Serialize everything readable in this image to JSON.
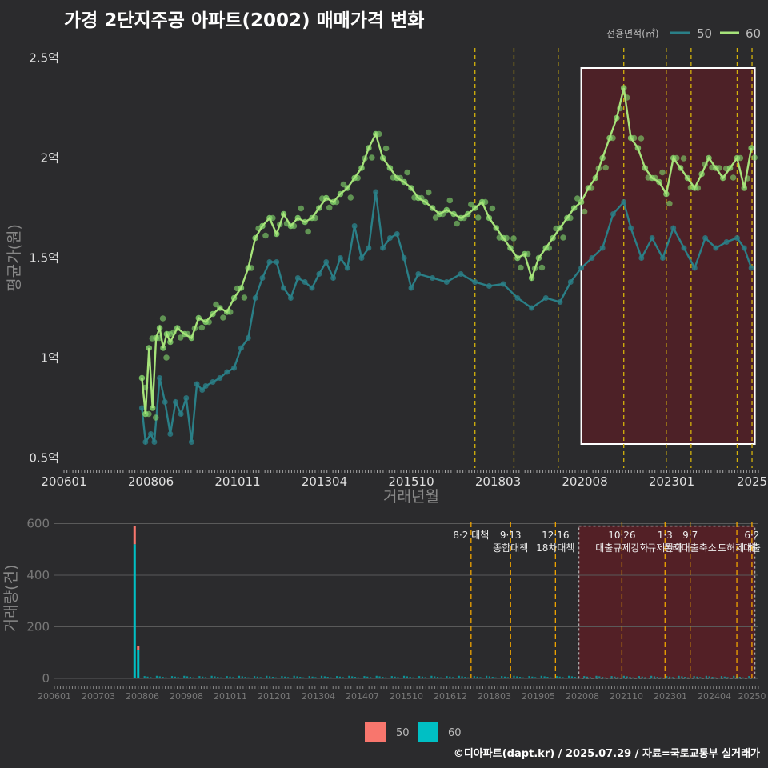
{
  "title": "가경 2단지주공 아파트(2002) 매매가격 변화",
  "source": "©디아파트(dapt.kr) / 2025.07.29 / 자료=국토교통부 실거래가",
  "colors": {
    "bg": "#2b2b2d",
    "s50_line": "#2a7f87",
    "s60_line": "#a6e37a",
    "s60_point": "#84d96c",
    "vol50": "#f8766d",
    "vol60": "#00bfc4",
    "policy": "#d4b20b",
    "highlight": "#5a1f26"
  },
  "chart_data": [
    {
      "type": "line",
      "ylabel": "평균가(원)",
      "xlabel": "거래년월",
      "x_ticks": [
        "200601",
        "200806",
        "201011",
        "201304",
        "201510",
        "201803",
        "202008",
        "202301",
        "2025"
      ],
      "y_ticks": [
        "0.5억",
        "1억",
        "1.5억",
        "2억",
        "2.5억"
      ],
      "y_tick_values": [
        0.5,
        1,
        1.5,
        2,
        2.5
      ],
      "ylim": [
        0.45,
        2.55
      ],
      "xlim": [
        2006.0,
        2025.6
      ],
      "legend_title": "전용면적(㎡)",
      "legend": [
        "50",
        "60"
      ],
      "legend_position": "top-right",
      "highlight_period": [
        2020.6,
        2025.5
      ],
      "policy_lines": [
        2017.6,
        2018.7,
        2019.95,
        2021.8,
        2023.0,
        2023.7,
        2025.0,
        2025.42
      ],
      "series": [
        {
          "name": "50",
          "x": [
            2008.2,
            2008.3,
            2008.45,
            2008.55,
            2008.7,
            2008.85,
            2009.0,
            2009.15,
            2009.3,
            2009.45,
            2009.6,
            2009.75,
            2009.9,
            2010.0,
            2010.2,
            2010.4,
            2010.6,
            2010.8,
            2011.0,
            2011.2,
            2011.4,
            2011.6,
            2011.8,
            2012.0,
            2012.2,
            2012.4,
            2012.6,
            2012.8,
            2013.0,
            2013.2,
            2013.4,
            2013.6,
            2013.8,
            2014.0,
            2014.2,
            2014.4,
            2014.6,
            2014.8,
            2015.0,
            2015.2,
            2015.4,
            2015.6,
            2015.8,
            2016.0,
            2016.4,
            2016.8,
            2017.2,
            2017.6,
            2018.0,
            2018.4,
            2018.8,
            2019.2,
            2019.6,
            2020.0,
            2020.3,
            2020.6,
            2020.9,
            2021.2,
            2021.5,
            2021.8,
            2022.0,
            2022.3,
            2022.6,
            2022.9,
            2023.2,
            2023.5,
            2023.8,
            2024.1,
            2024.4,
            2024.7,
            2025.0,
            2025.2,
            2025.4
          ],
          "y": [
            0.75,
            0.58,
            0.62,
            0.58,
            0.9,
            0.78,
            0.62,
            0.78,
            0.72,
            0.8,
            0.58,
            0.87,
            0.84,
            0.86,
            0.88,
            0.9,
            0.93,
            0.95,
            1.05,
            1.1,
            1.3,
            1.4,
            1.48,
            1.48,
            1.35,
            1.3,
            1.4,
            1.38,
            1.35,
            1.42,
            1.48,
            1.4,
            1.5,
            1.45,
            1.66,
            1.5,
            1.55,
            1.83,
            1.55,
            1.6,
            1.62,
            1.5,
            1.35,
            1.42,
            1.4,
            1.38,
            1.42,
            1.38,
            1.36,
            1.37,
            1.3,
            1.25,
            1.3,
            1.28,
            1.38,
            1.45,
            1.5,
            1.55,
            1.72,
            1.78,
            1.65,
            1.5,
            1.6,
            1.5,
            1.65,
            1.55,
            1.45,
            1.6,
            1.55,
            1.58,
            1.6,
            1.55,
            1.45
          ]
        },
        {
          "name": "60",
          "x": [
            2008.2,
            2008.3,
            2008.4,
            2008.5,
            2008.6,
            2008.7,
            2008.8,
            2008.9,
            2009.0,
            2009.2,
            2009.4,
            2009.6,
            2009.8,
            2010.0,
            2010.2,
            2010.4,
            2010.6,
            2010.8,
            2011.0,
            2011.2,
            2011.4,
            2011.6,
            2011.8,
            2012.0,
            2012.2,
            2012.4,
            2012.6,
            2012.8,
            2013.0,
            2013.2,
            2013.4,
            2013.6,
            2013.8,
            2014.0,
            2014.2,
            2014.4,
            2014.6,
            2014.8,
            2015.0,
            2015.2,
            2015.4,
            2015.6,
            2015.8,
            2016.0,
            2016.2,
            2016.4,
            2016.6,
            2016.8,
            2017.0,
            2017.2,
            2017.4,
            2017.6,
            2017.8,
            2018.0,
            2018.2,
            2018.4,
            2018.6,
            2018.8,
            2019.0,
            2019.2,
            2019.4,
            2019.6,
            2019.8,
            2020.0,
            2020.2,
            2020.4,
            2020.6,
            2020.8,
            2021.0,
            2021.2,
            2021.4,
            2021.6,
            2021.8,
            2022.0,
            2022.2,
            2022.4,
            2022.6,
            2022.8,
            2023.0,
            2023.2,
            2023.4,
            2023.6,
            2023.8,
            2024.0,
            2024.2,
            2024.4,
            2024.6,
            2024.8,
            2025.0,
            2025.2,
            2025.4
          ],
          "y": [
            0.9,
            0.72,
            1.05,
            0.75,
            1.1,
            1.15,
            1.05,
            1.12,
            1.08,
            1.15,
            1.12,
            1.1,
            1.2,
            1.18,
            1.22,
            1.25,
            1.23,
            1.3,
            1.35,
            1.45,
            1.6,
            1.66,
            1.7,
            1.62,
            1.72,
            1.66,
            1.7,
            1.68,
            1.7,
            1.75,
            1.8,
            1.78,
            1.82,
            1.85,
            1.9,
            1.95,
            2.05,
            2.12,
            2.0,
            1.95,
            1.9,
            1.88,
            1.85,
            1.8,
            1.78,
            1.75,
            1.72,
            1.74,
            1.72,
            1.7,
            1.72,
            1.75,
            1.78,
            1.7,
            1.65,
            1.6,
            1.55,
            1.5,
            1.52,
            1.4,
            1.5,
            1.55,
            1.6,
            1.65,
            1.7,
            1.75,
            1.78,
            1.85,
            1.9,
            2.0,
            2.1,
            2.2,
            2.35,
            2.1,
            2.05,
            1.95,
            1.9,
            1.88,
            1.82,
            2.0,
            1.95,
            1.9,
            1.85,
            1.92,
            2.0,
            1.95,
            1.9,
            1.95,
            2.0,
            1.85,
            2.05
          ]
        }
      ]
    },
    {
      "type": "bar",
      "ylabel": "거래량(건)",
      "x_ticks": [
        "200601",
        "200703",
        "200806",
        "200908",
        "201011",
        "201201",
        "201304",
        "201407",
        "201510",
        "201612",
        "201803",
        "201905",
        "202008",
        "202110",
        "202301",
        "202404",
        "20250"
      ],
      "y_ticks": [
        "0",
        "200",
        "400",
        "600"
      ],
      "y_tick_values": [
        0,
        200,
        400,
        600
      ],
      "ylim": [
        0,
        620
      ],
      "legend": [
        "50",
        "60"
      ],
      "legend_position": "bottom",
      "annotations": [
        {
          "x": 2017.6,
          "lines": [
            "8·2 대책"
          ]
        },
        {
          "x": 2018.7,
          "lines": [
            "9·13",
            "종합대책"
          ]
        },
        {
          "x": 2019.95,
          "lines": [
            "12·16",
            "18차대책"
          ]
        },
        {
          "x": 2021.8,
          "lines": [
            "10·26",
            "대출규제강화"
          ]
        },
        {
          "x": 2023.0,
          "lines": [
            "1·3",
            "규제완화"
          ]
        },
        {
          "x": 2023.7,
          "lines": [
            "9·7",
            "특례대출축소"
          ]
        },
        {
          "x": 2025.0,
          "lines": [
            "",
            "토허제 해"
          ]
        },
        {
          "x": 2025.42,
          "lines": [
            "6·2",
            "대출"
          ]
        }
      ],
      "series": [
        {
          "name": "50",
          "x": [
            2008.2,
            2008.3
          ],
          "values": [
            70,
            15
          ]
        },
        {
          "name": "60",
          "x": [
            2008.2,
            2008.3
          ],
          "values": [
            520,
            110
          ]
        }
      ]
    }
  ]
}
